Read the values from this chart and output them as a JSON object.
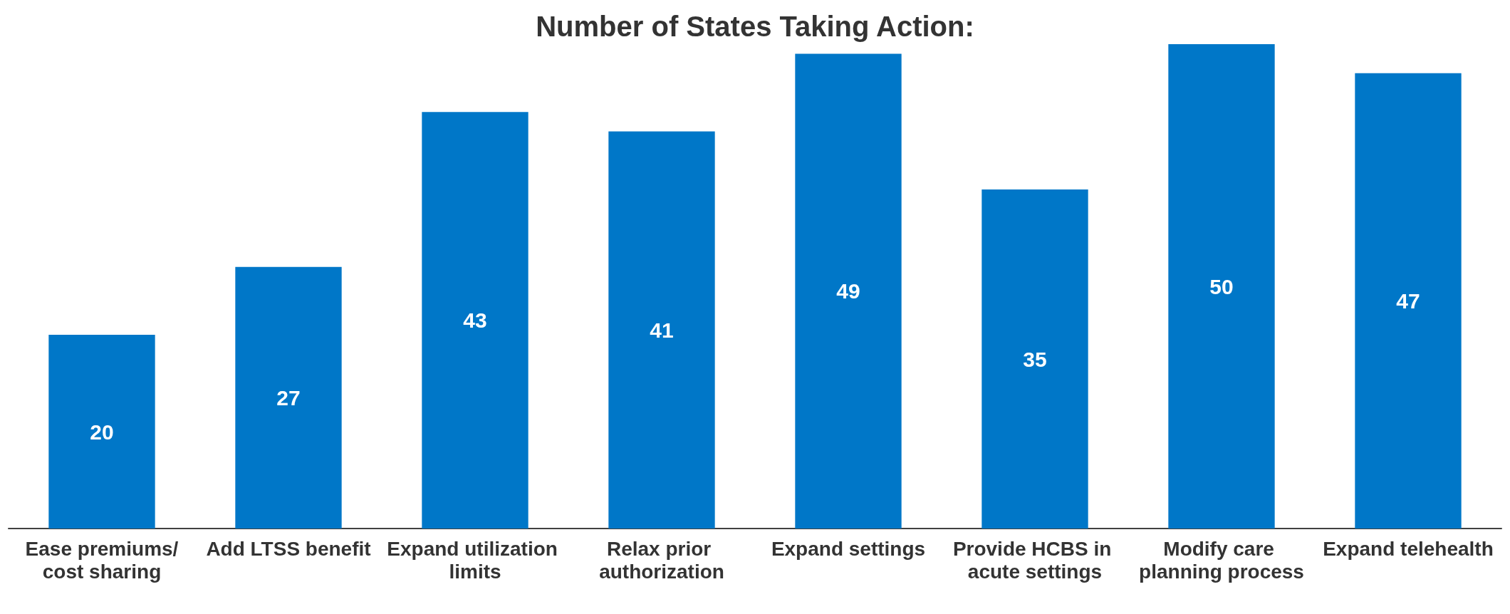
{
  "chart_data": {
    "type": "bar",
    "title": "Number of States Taking Action:",
    "categories": [
      "Ease premiums/cost sharing",
      "Add LTSS benefit",
      "Expand utilization limits",
      "Relax prior authorization",
      "Expand settings",
      "Provide HCBS in acute settings",
      "Modify care planning process",
      "Expand telehealth"
    ],
    "values": [
      20,
      27,
      43,
      41,
      49,
      35,
      50,
      47
    ],
    "color": "#0077c8",
    "data_labels": true
  }
}
